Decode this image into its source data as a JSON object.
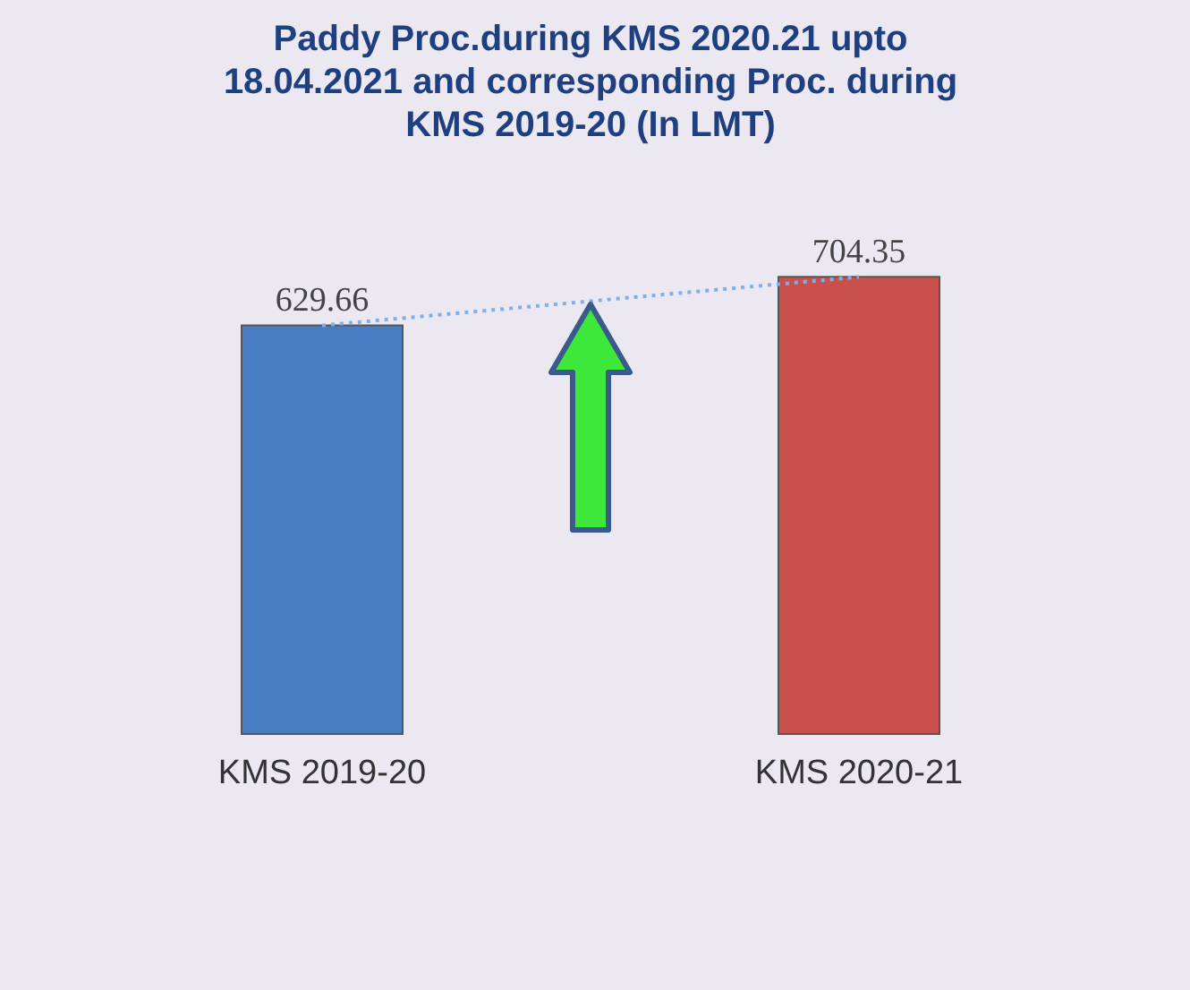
{
  "chart_data": {
    "type": "bar",
    "title": "Paddy Proc.during KMS 2020.21 upto 18.04.2021 and corresponding Proc. during  KMS 2019-20  (In LMT)",
    "categories": [
      "KMS 2019-20",
      "KMS 2020-21"
    ],
    "series": [
      {
        "colors": [
          "#4a7cc4",
          "#c9504d"
        ],
        "values": [
          629.66,
          704.35
        ],
        "value_labels": [
          "629.66",
          "704.35"
        ]
      },
      {
        "type": "line",
        "color": "#80aee6",
        "line_style": "dotted",
        "values": [
          629.66,
          704.35
        ]
      }
    ]
  }
}
